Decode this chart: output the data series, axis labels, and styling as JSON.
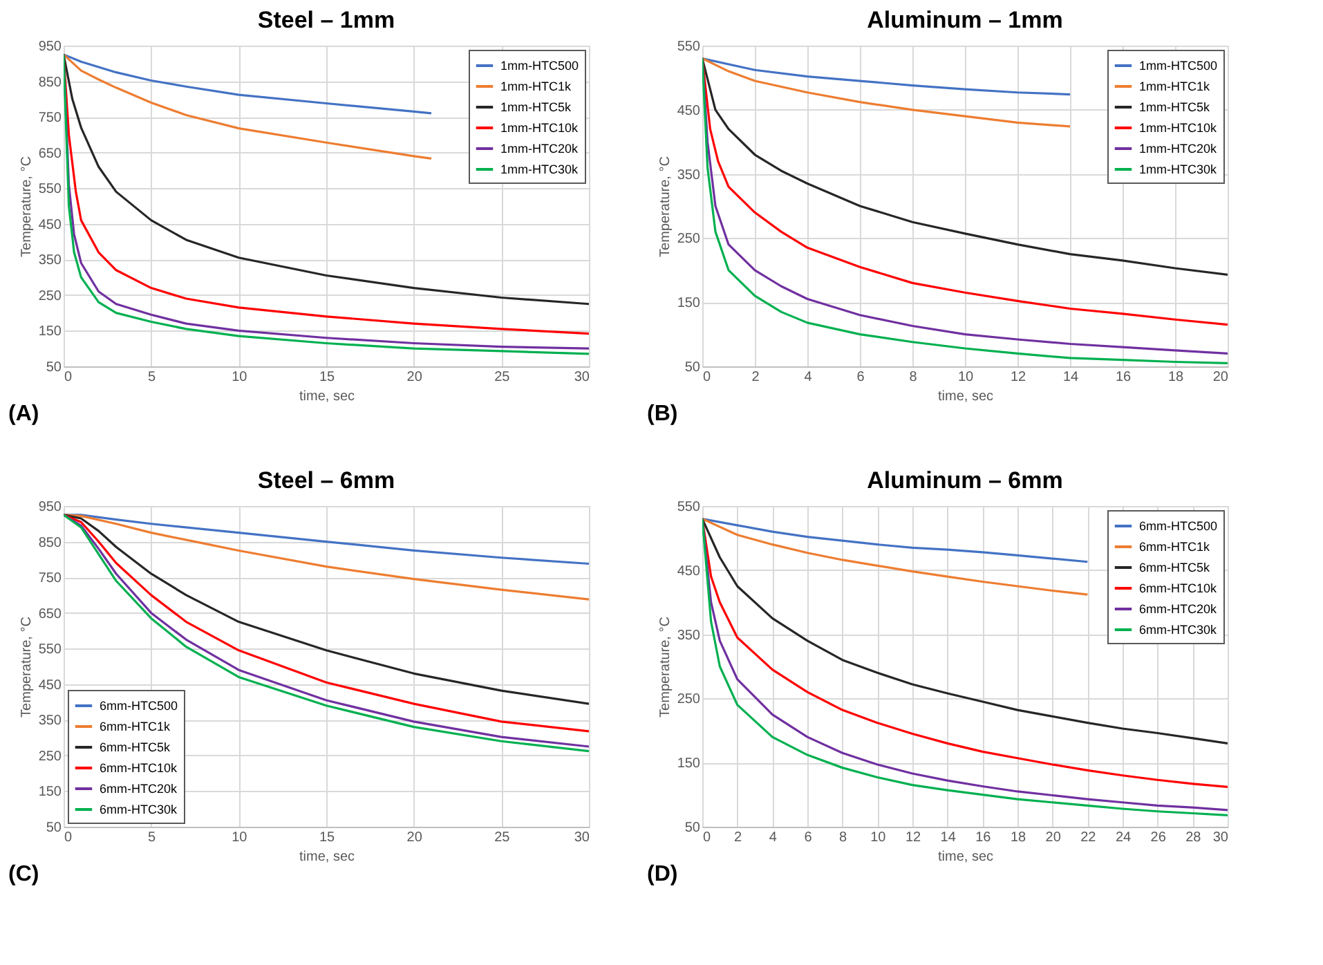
{
  "chart_data": [
    {
      "type": "line",
      "title": "Steel – 1mm",
      "xlabel": "time, sec",
      "ylabel": "Temperature, °C",
      "xlim": [
        0,
        30
      ],
      "xticks": [
        0,
        5,
        10,
        15,
        20,
        25,
        30
      ],
      "ylim": [
        50,
        950
      ],
      "yticks": [
        50,
        150,
        250,
        350,
        450,
        550,
        650,
        750,
        850,
        950
      ],
      "grid": true,
      "legend": "top right",
      "annotations": [
        "(A)"
      ],
      "series": [
        {
          "name": "1mm-HTC500",
          "color": "#4472c4",
          "x": [
            0,
            1,
            2,
            3,
            5,
            7,
            10,
            15,
            20,
            21
          ],
          "values": [
            925,
            905,
            890,
            875,
            852,
            835,
            812,
            788,
            765,
            760
          ]
        },
        {
          "name": "1mm-HTC1k",
          "color": "#ed7d31",
          "x": [
            0,
            1,
            2,
            3,
            5,
            7,
            10,
            15,
            20,
            21
          ],
          "values": [
            925,
            880,
            855,
            832,
            790,
            755,
            718,
            678,
            640,
            633
          ]
        },
        {
          "name": "1mm-HTC5k",
          "color": "#262626",
          "x": [
            0,
            0.5,
            1,
            2,
            3,
            5,
            7,
            10,
            15,
            20,
            25,
            30
          ],
          "values": [
            925,
            800,
            720,
            610,
            540,
            460,
            405,
            355,
            305,
            270,
            243,
            225
          ]
        },
        {
          "name": "1mm-HTC10k",
          "color": "#ff0000",
          "x": [
            0,
            0.3,
            0.7,
            1,
            2,
            3,
            5,
            7,
            10,
            15,
            20,
            25,
            30
          ],
          "values": [
            925,
            700,
            540,
            460,
            370,
            320,
            270,
            240,
            215,
            190,
            170,
            155,
            142
          ]
        },
        {
          "name": "1mm-HTC20k",
          "color": "#7030a0",
          "x": [
            0,
            0.3,
            0.6,
            1,
            2,
            3,
            5,
            7,
            10,
            15,
            20,
            25,
            30
          ],
          "values": [
            925,
            560,
            420,
            340,
            260,
            225,
            195,
            170,
            150,
            130,
            115,
            105,
            100
          ]
        },
        {
          "name": "1mm-HTC30k",
          "color": "#00b050",
          "x": [
            0,
            0.3,
            0.6,
            1,
            2,
            3,
            5,
            7,
            10,
            15,
            20,
            25,
            30
          ],
          "values": [
            925,
            500,
            370,
            300,
            230,
            200,
            175,
            155,
            135,
            115,
            100,
            93,
            85
          ]
        }
      ]
    },
    {
      "type": "line",
      "title": "Aluminum – 1mm",
      "xlabel": "time, sec",
      "ylabel": "Temperature, °C",
      "xlim": [
        0,
        20
      ],
      "xticks": [
        0,
        2,
        4,
        6,
        8,
        10,
        12,
        14,
        16,
        18,
        20
      ],
      "ylim": [
        50,
        550
      ],
      "yticks": [
        50,
        150,
        250,
        350,
        450,
        550
      ],
      "grid": true,
      "legend": "top right",
      "annotations": [
        "(B)"
      ],
      "series": [
        {
          "name": "1mm-HTC500",
          "color": "#4472c4",
          "x": [
            0,
            2,
            4,
            6,
            8,
            10,
            12,
            14
          ],
          "values": [
            530,
            512,
            502,
            495,
            488,
            482,
            477,
            474
          ]
        },
        {
          "name": "1mm-HTC1k",
          "color": "#ed7d31",
          "x": [
            0,
            1,
            2,
            4,
            6,
            8,
            10,
            12,
            14
          ],
          "values": [
            530,
            510,
            495,
            477,
            462,
            450,
            440,
            430,
            424
          ]
        },
        {
          "name": "1mm-HTC5k",
          "color": "#262626",
          "x": [
            0,
            0.5,
            1,
            2,
            3,
            4,
            6,
            8,
            10,
            12,
            14,
            16,
            18,
            20
          ],
          "values": [
            530,
            450,
            420,
            380,
            355,
            335,
            300,
            275,
            257,
            240,
            225,
            215,
            203,
            193
          ]
        },
        {
          "name": "1mm-HTC10k",
          "color": "#ff0000",
          "x": [
            0,
            0.3,
            0.6,
            1,
            2,
            3,
            4,
            6,
            8,
            10,
            12,
            14,
            16,
            18,
            20
          ],
          "values": [
            530,
            420,
            370,
            330,
            290,
            260,
            235,
            205,
            180,
            165,
            152,
            140,
            132,
            123,
            115
          ]
        },
        {
          "name": "1mm-HTC20k",
          "color": "#7030a0",
          "x": [
            0,
            0.2,
            0.5,
            1,
            2,
            3,
            4,
            6,
            8,
            10,
            12,
            14,
            16,
            18,
            20
          ],
          "values": [
            530,
            400,
            300,
            240,
            200,
            175,
            155,
            130,
            113,
            100,
            92,
            85,
            80,
            75,
            70
          ]
        },
        {
          "name": "1mm-HTC30k",
          "color": "#00b050",
          "x": [
            0,
            0.2,
            0.5,
            1,
            2,
            3,
            4,
            6,
            8,
            10,
            12,
            14,
            16,
            18,
            20
          ],
          "values": [
            530,
            360,
            260,
            200,
            160,
            135,
            118,
            100,
            88,
            78,
            70,
            63,
            60,
            57,
            55
          ]
        }
      ]
    },
    {
      "type": "line",
      "title": "Steel – 6mm",
      "xlabel": "time, sec",
      "ylabel": "Temperature, °C",
      "xlim": [
        0,
        30
      ],
      "xticks": [
        0,
        5,
        10,
        15,
        20,
        25,
        30
      ],
      "ylim": [
        50,
        950
      ],
      "yticks": [
        50,
        150,
        250,
        350,
        450,
        550,
        650,
        750,
        850,
        950
      ],
      "grid": true,
      "legend": "bottom left",
      "annotations": [
        "(C)"
      ],
      "series": [
        {
          "name": "6mm-HTC500",
          "color": "#4472c4",
          "x": [
            0,
            1,
            3,
            5,
            10,
            15,
            20,
            25,
            30
          ],
          "values": [
            925,
            925,
            912,
            900,
            875,
            850,
            825,
            805,
            788
          ]
        },
        {
          "name": "6mm-HTC1k",
          "color": "#ed7d31",
          "x": [
            0,
            1,
            3,
            5,
            8,
            10,
            15,
            20,
            25,
            30
          ],
          "values": [
            925,
            922,
            900,
            875,
            845,
            825,
            780,
            745,
            715,
            688
          ]
        },
        {
          "name": "6mm-HTC5k",
          "color": "#262626",
          "x": [
            0,
            1,
            2,
            3,
            5,
            7,
            10,
            15,
            20,
            25,
            30
          ],
          "values": [
            925,
            915,
            880,
            835,
            760,
            700,
            625,
            545,
            480,
            432,
            395
          ]
        },
        {
          "name": "6mm-HTC10k",
          "color": "#ff0000",
          "x": [
            0,
            1,
            2,
            3,
            5,
            7,
            10,
            15,
            20,
            25,
            30
          ],
          "values": [
            925,
            905,
            850,
            790,
            700,
            625,
            545,
            455,
            395,
            345,
            318
          ]
        },
        {
          "name": "6mm-HTC20k",
          "color": "#7030a0",
          "x": [
            0,
            1,
            2,
            3,
            5,
            7,
            10,
            15,
            20,
            25,
            30
          ],
          "values": [
            925,
            895,
            830,
            760,
            650,
            575,
            490,
            405,
            345,
            302,
            275
          ]
        },
        {
          "name": "6mm-HTC30k",
          "color": "#00b050",
          "x": [
            0,
            1,
            2,
            3,
            5,
            7,
            10,
            15,
            20,
            25,
            30
          ],
          "values": [
            925,
            890,
            815,
            740,
            635,
            555,
            470,
            390,
            330,
            290,
            262
          ]
        }
      ]
    },
    {
      "type": "line",
      "title": "Aluminum – 6mm",
      "xlabel": "time, sec",
      "ylabel": "Temperature, °C",
      "xlim": [
        0,
        30
      ],
      "xticks": [
        0,
        2,
        4,
        6,
        8,
        10,
        12,
        14,
        16,
        18,
        20,
        22,
        24,
        26,
        28,
        30
      ],
      "ylim": [
        50,
        550
      ],
      "yticks": [
        50,
        150,
        250,
        350,
        450,
        550
      ],
      "grid": true,
      "legend": "top right",
      "annotations": [
        "(D)"
      ],
      "series": [
        {
          "name": "6mm-HTC500",
          "color": "#4472c4",
          "x": [
            0,
            2,
            4,
            6,
            8,
            10,
            12,
            14,
            16,
            18,
            20,
            22
          ],
          "values": [
            530,
            520,
            510,
            502,
            496,
            490,
            485,
            482,
            478,
            473,
            468,
            463
          ]
        },
        {
          "name": "6mm-HTC1k",
          "color": "#ed7d31",
          "x": [
            0,
            2,
            4,
            6,
            8,
            10,
            12,
            14,
            16,
            18,
            20,
            22
          ],
          "values": [
            530,
            505,
            490,
            477,
            466,
            457,
            448,
            440,
            432,
            425,
            418,
            412
          ]
        },
        {
          "name": "6mm-HTC5k",
          "color": "#262626",
          "x": [
            0,
            1,
            2,
            4,
            6,
            8,
            10,
            12,
            14,
            16,
            18,
            20,
            22,
            24,
            26,
            28,
            30
          ],
          "values": [
            530,
            470,
            425,
            375,
            340,
            310,
            290,
            272,
            258,
            245,
            232,
            222,
            212,
            203,
            196,
            188,
            180
          ]
        },
        {
          "name": "6mm-HTC10k",
          "color": "#ff0000",
          "x": [
            0,
            0.5,
            1,
            2,
            4,
            6,
            8,
            10,
            12,
            14,
            16,
            18,
            20,
            22,
            24,
            26,
            28,
            30
          ],
          "values": [
            530,
            440,
            400,
            345,
            295,
            260,
            232,
            212,
            195,
            180,
            167,
            157,
            147,
            138,
            130,
            123,
            117,
            112
          ]
        },
        {
          "name": "6mm-HTC20k",
          "color": "#7030a0",
          "x": [
            0,
            0.5,
            1,
            2,
            4,
            6,
            8,
            10,
            12,
            14,
            16,
            18,
            20,
            22,
            24,
            26,
            28,
            30
          ],
          "values": [
            530,
            400,
            340,
            280,
            225,
            190,
            165,
            147,
            133,
            122,
            113,
            105,
            99,
            93,
            88,
            83,
            80,
            76
          ]
        },
        {
          "name": "6mm-HTC30k",
          "color": "#00b050",
          "x": [
            0,
            0.5,
            1,
            2,
            4,
            6,
            8,
            10,
            12,
            14,
            16,
            18,
            20,
            22,
            24,
            26,
            28,
            30
          ],
          "values": [
            530,
            370,
            300,
            240,
            190,
            162,
            142,
            127,
            115,
            107,
            100,
            93,
            88,
            83,
            78,
            74,
            71,
            68
          ]
        }
      ]
    }
  ]
}
